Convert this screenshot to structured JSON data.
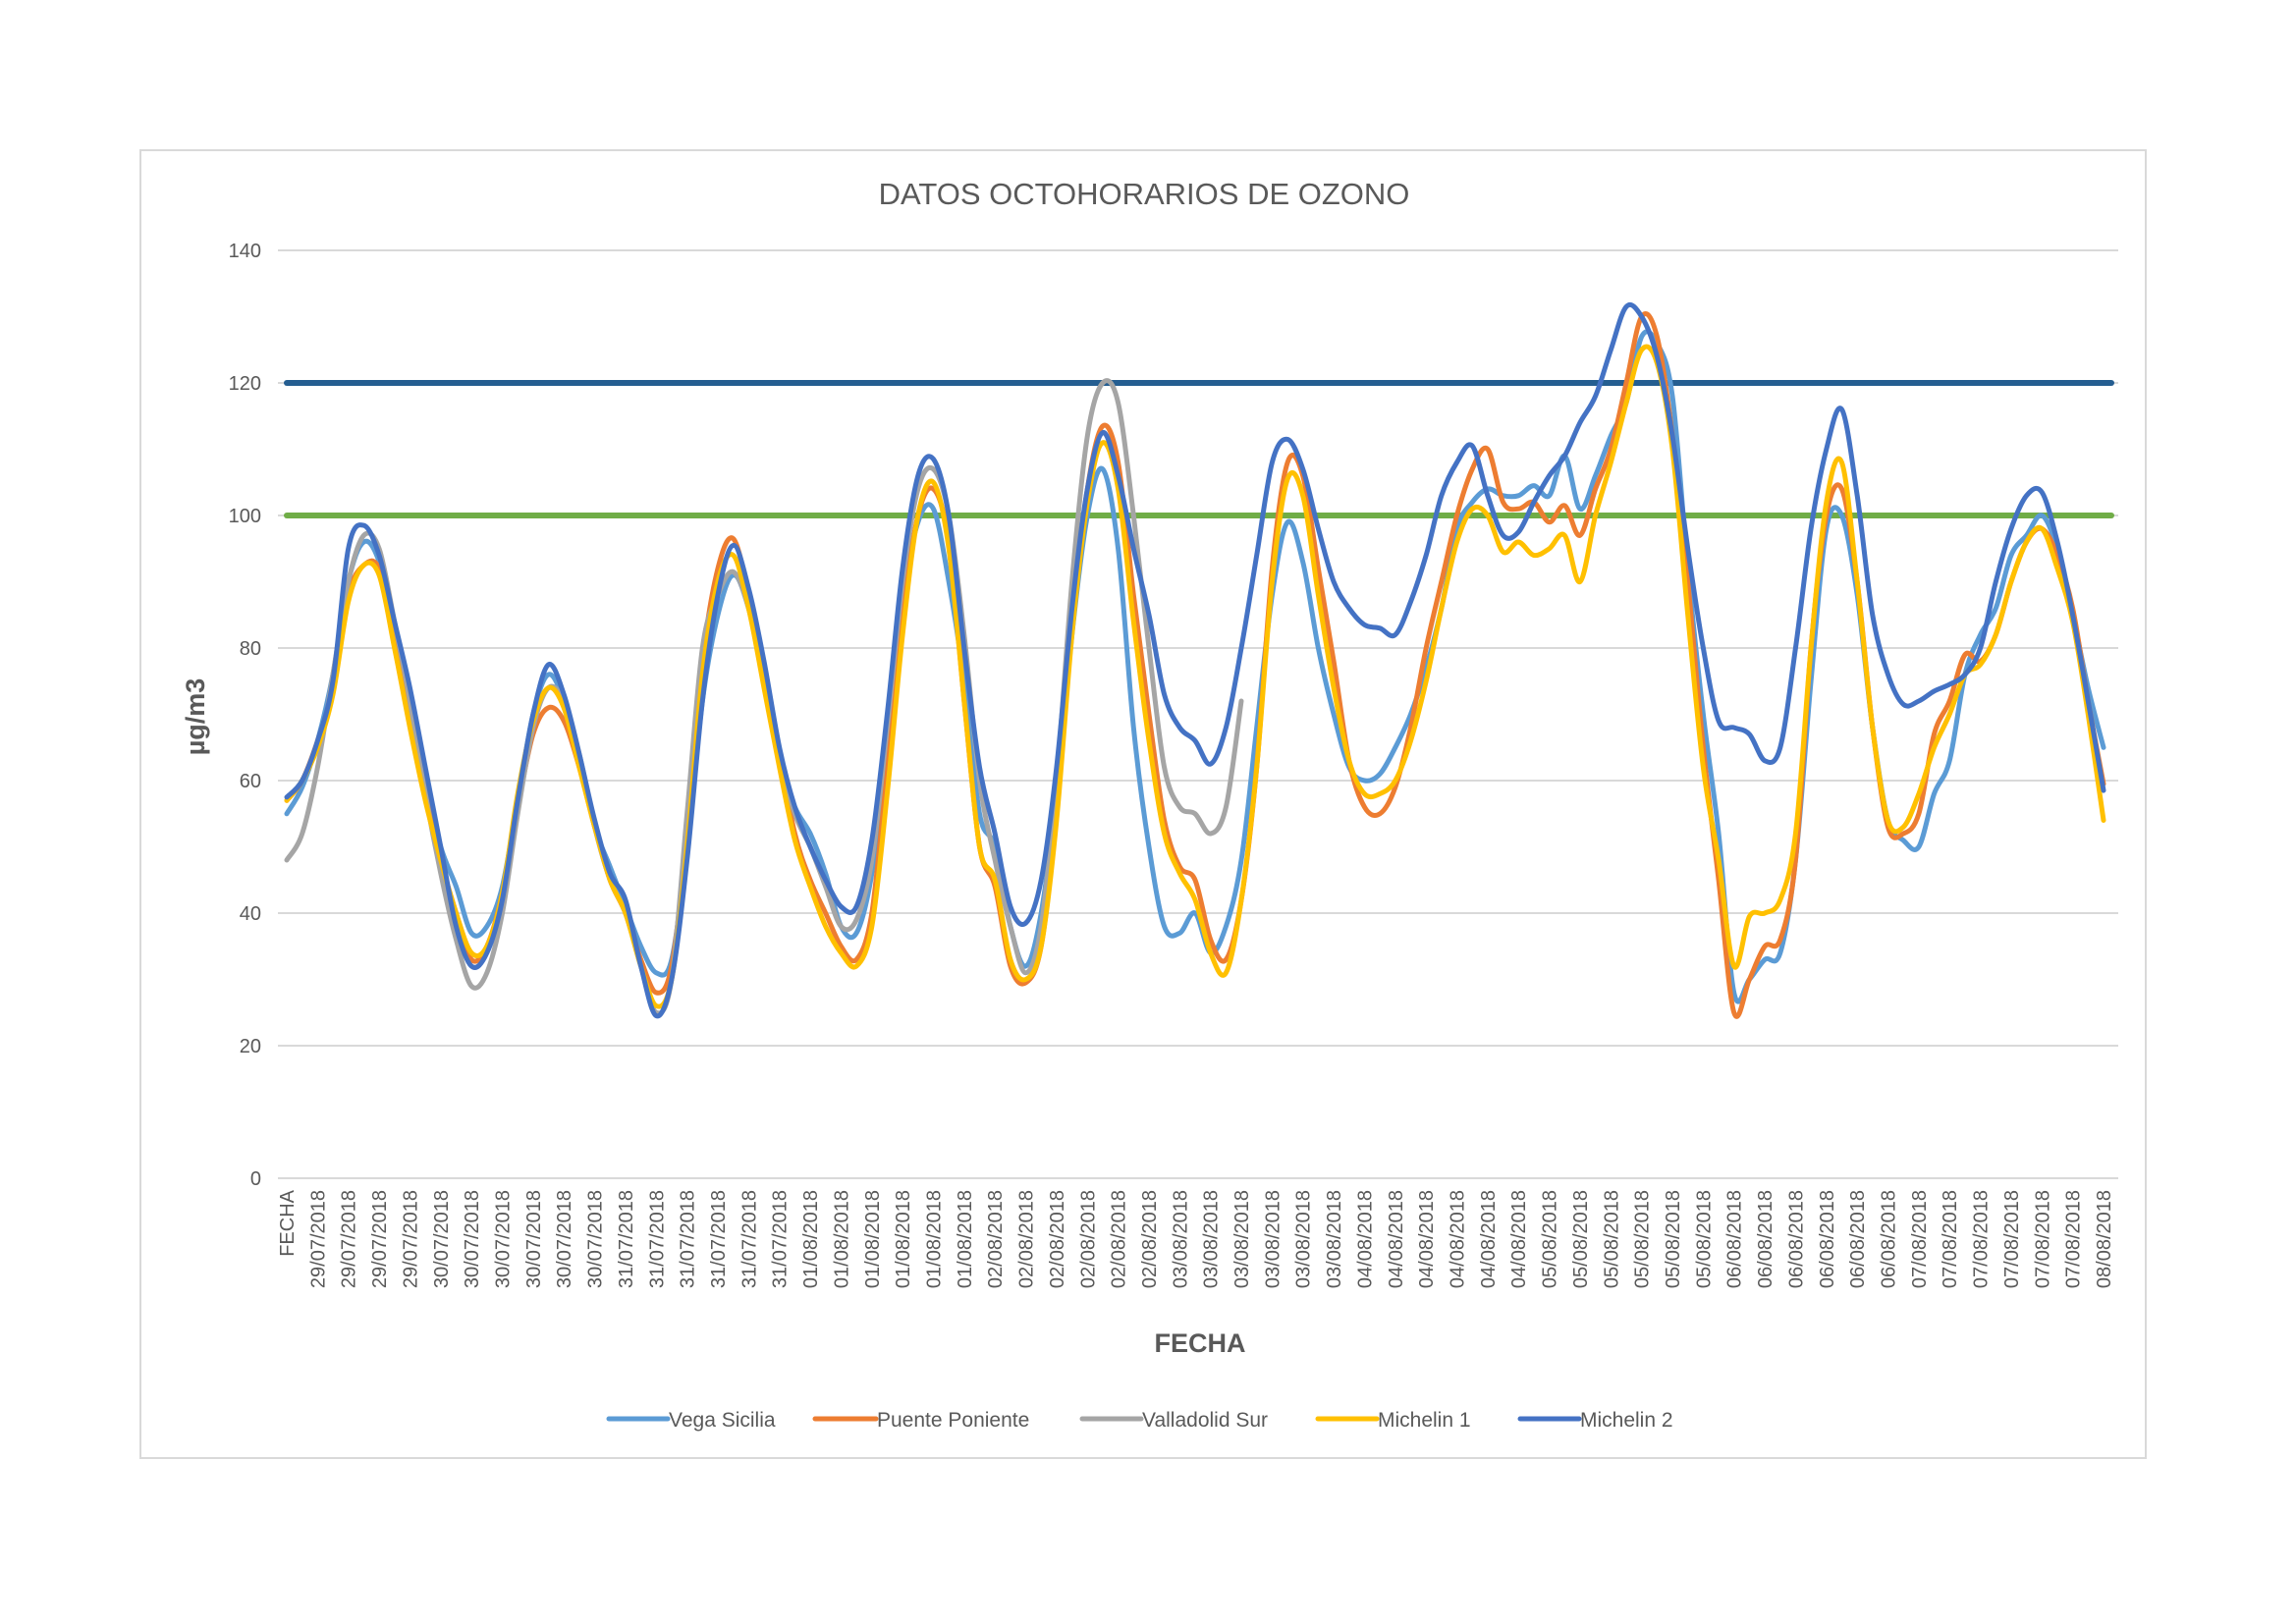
{
  "chart_data": {
    "type": "line",
    "title": "DATOS OCTOHORARIOS DE OZONO",
    "xlabel": "FECHA",
    "ylabel": "µg/m3",
    "ylim": [
      0,
      140
    ],
    "y_ticks": [
      0,
      20,
      40,
      60,
      80,
      100,
      120,
      140
    ],
    "grid": "horizontal",
    "smooth": true,
    "legend": "bottom",
    "tick_label_interval": 2,
    "categories": [
      "FECHA",
      "29/07/2018",
      "29/07/2018",
      "29/07/2018",
      "29/07/2018",
      "29/07/2018",
      "29/07/2018",
      "29/07/2018",
      "29/07/2018",
      "30/07/2018",
      "30/07/2018",
      "30/07/2018",
      "30/07/2018",
      "30/07/2018",
      "30/07/2018",
      "30/07/2018",
      "30/07/2018",
      "30/07/2018",
      "30/07/2018",
      "30/07/2018",
      "30/07/2018",
      "31/07/2018",
      "31/07/2018",
      "31/07/2018",
      "31/07/2018",
      "31/07/2018",
      "31/07/2018",
      "31/07/2018",
      "31/07/2018",
      "31/07/2018",
      "31/07/2018",
      "31/07/2018",
      "31/07/2018",
      "01/08/2018",
      "01/08/2018",
      "01/08/2018",
      "01/08/2018",
      "01/08/2018",
      "01/08/2018",
      "01/08/2018",
      "01/08/2018",
      "01/08/2018",
      "01/08/2018",
      "01/08/2018",
      "01/08/2018",
      "02/08/2018",
      "02/08/2018",
      "02/08/2018",
      "02/08/2018",
      "02/08/2018",
      "02/08/2018",
      "02/08/2018",
      "02/08/2018",
      "02/08/2018",
      "02/08/2018",
      "02/08/2018",
      "02/08/2018",
      "03/08/2018",
      "03/08/2018",
      "03/08/2018",
      "03/08/2018",
      "03/08/2018",
      "03/08/2018",
      "03/08/2018",
      "03/08/2018",
      "03/08/2018",
      "03/08/2018",
      "03/08/2018",
      "03/08/2018",
      "04/08/2018",
      "04/08/2018",
      "04/08/2018",
      "04/08/2018",
      "04/08/2018",
      "04/08/2018",
      "04/08/2018",
      "04/08/2018",
      "04/08/2018",
      "04/08/2018",
      "04/08/2018",
      "04/08/2018",
      "05/08/2018",
      "05/08/2018",
      "05/08/2018",
      "05/08/2018",
      "05/08/2018",
      "05/08/2018",
      "05/08/2018",
      "05/08/2018",
      "05/08/2018",
      "05/08/2018",
      "05/08/2018",
      "05/08/2018",
      "06/08/2018",
      "06/08/2018",
      "06/08/2018",
      "06/08/2018",
      "06/08/2018",
      "06/08/2018",
      "06/08/2018",
      "06/08/2018",
      "06/08/2018",
      "06/08/2018",
      "06/08/2018",
      "06/08/2018",
      "07/08/2018",
      "07/08/2018",
      "07/08/2018",
      "07/08/2018",
      "07/08/2018",
      "07/08/2018",
      "07/08/2018",
      "07/08/2018",
      "07/08/2018",
      "07/08/2018",
      "07/08/2018",
      "07/08/2018",
      "08/08/2018",
      "08/08/2018"
    ],
    "reference_lines": [
      {
        "value": 120,
        "color": "#255E91"
      },
      {
        "value": 100,
        "color": "#70AD47"
      }
    ],
    "series": [
      {
        "name": "Vega Sicilia",
        "color": "#5B9BD5",
        "values": [
          55,
          59,
          66,
          76,
          90,
          96,
          93,
          82,
          72,
          60,
          50,
          44,
          37,
          38,
          44,
          57,
          70,
          76,
          72,
          63,
          53,
          47,
          41,
          35,
          31,
          33,
          50,
          72,
          85,
          91,
          86,
          75,
          63,
          56,
          52,
          46,
          38,
          37,
          46,
          65,
          87,
          99,
          101,
          90,
          75,
          55,
          50,
          38,
          32,
          40,
          58,
          82,
          100,
          107,
          95,
          68,
          50,
          38,
          37,
          40,
          34,
          38,
          48,
          68,
          88,
          99,
          93,
          80,
          70,
          62,
          60,
          61,
          65,
          70,
          77,
          86,
          98,
          102,
          104,
          103,
          103,
          104.5,
          103,
          109,
          101,
          106,
          112,
          117,
          127,
          126,
          118,
          92,
          70,
          52,
          28,
          30,
          33,
          34,
          48,
          75,
          98,
          100,
          88,
          68,
          54,
          51,
          50,
          58,
          63,
          76,
          82,
          86,
          94,
          97,
          100,
          95,
          85,
          74,
          65
        ]
      },
      {
        "name": "Puente Poniente",
        "color": "#ED7D31",
        "values": [
          57,
          60,
          66,
          74,
          88,
          92.5,
          92,
          82,
          70,
          58,
          48,
          40,
          33,
          35,
          43,
          56,
          67,
          71,
          69,
          62,
          53,
          45,
          40,
          33,
          28,
          32,
          52,
          78,
          92,
          96.5,
          88,
          76,
          64,
          52,
          45,
          40,
          35,
          33,
          40,
          62,
          85,
          100,
          104,
          96,
          72,
          50,
          44,
          32,
          29.5,
          35,
          55,
          84,
          104,
          113.5,
          108,
          88,
          70,
          54,
          47,
          45,
          36,
          33,
          42,
          62,
          92,
          108,
          106,
          92,
          78,
          63,
          56,
          55,
          59,
          68,
          80,
          90,
          100,
          107,
          110,
          102,
          101,
          102,
          99,
          101.5,
          97,
          104,
          110,
          120,
          130,
          127,
          112,
          90,
          65,
          45,
          25,
          30,
          35,
          36,
          48,
          80,
          100,
          104,
          90,
          68,
          53,
          52,
          55,
          67,
          72,
          79,
          78,
          82,
          90,
          96,
          98,
          94,
          86,
          72,
          59.5
        ]
      },
      {
        "name": "Valladolid Sur",
        "color": "#A5A5A5",
        "values": [
          48,
          52,
          62,
          76,
          90,
          97,
          95,
          84,
          72,
          58,
          46,
          36,
          29,
          31,
          40,
          55,
          68,
          74,
          72,
          64,
          53,
          45,
          40,
          32,
          25,
          30,
          55,
          80,
          88,
          91.5,
          86,
          75,
          64,
          55,
          50,
          44,
          38,
          39,
          48,
          68,
          90,
          104,
          107,
          100,
          82,
          60,
          48,
          38,
          31,
          38,
          60,
          90,
          112,
          120,
          117,
          100,
          80,
          62,
          56,
          55,
          52,
          56,
          72,
          null,
          null,
          null,
          null,
          null,
          null,
          null,
          null,
          null,
          null,
          null,
          null,
          null,
          null,
          null,
          null,
          null,
          null,
          null,
          null,
          null,
          null,
          null,
          null,
          null,
          null,
          null,
          null,
          null,
          null,
          null,
          null,
          null,
          null,
          null,
          null,
          null,
          null,
          null,
          null,
          null,
          null,
          null,
          null,
          null,
          null,
          null,
          null,
          null,
          null,
          null,
          null,
          null,
          null,
          null,
          null
        ]
      },
      {
        "name": "Michelin 1",
        "color": "#FFC000",
        "values": [
          57,
          60,
          65,
          73,
          87,
          92.5,
          91,
          80,
          68,
          57,
          48,
          40,
          34,
          35,
          43,
          58,
          69,
          74,
          71,
          62,
          53,
          45,
          40,
          32,
          26,
          30,
          50,
          76,
          90,
          94,
          86,
          74,
          62,
          51,
          44,
          38,
          34,
          32,
          38,
          58,
          82,
          100,
          105,
          95,
          72,
          50,
          45,
          33,
          30,
          35,
          54,
          82,
          102,
          111,
          104,
          84,
          66,
          52,
          46,
          42,
          34,
          31,
          42,
          62,
          90,
          105.5,
          103,
          88,
          74,
          63,
          58,
          58,
          60,
          66,
          75,
          86,
          96,
          101,
          100,
          94.5,
          96,
          94,
          95,
          97,
          90,
          100,
          108,
          117,
          125,
          123,
          110,
          85,
          62,
          48,
          32,
          39.5,
          40,
          42,
          52,
          80,
          102,
          108,
          90,
          68,
          54,
          53,
          58,
          65,
          70,
          76,
          77.5,
          82,
          90,
          96,
          98,
          92,
          84,
          70,
          54
        ]
      },
      {
        "name": "Michelin 2",
        "color": "#4472C4",
        "values": [
          57.5,
          60,
          66,
          75,
          95,
          98.5,
          94,
          84,
          74,
          62,
          50,
          38,
          32,
          34,
          42,
          57,
          70,
          77.5,
          73,
          64,
          54,
          46,
          42,
          32,
          24.5,
          30,
          48,
          72,
          88,
          95.5,
          89,
          78,
          65,
          56,
          50,
          45,
          41,
          41,
          51,
          70,
          92,
          106,
          108.5,
          100,
          80,
          62,
          52,
          41,
          38.5,
          45,
          62,
          86,
          104,
          112.5,
          106,
          95,
          85,
          73,
          68,
          66,
          62.5,
          68,
          80,
          94,
          108,
          111.5,
          107,
          98,
          90,
          86,
          83.5,
          83,
          82,
          87,
          94,
          103,
          108,
          110.5,
          103,
          97,
          97.5,
          102,
          106,
          109,
          114,
          118,
          125,
          131.5,
          130,
          124,
          112,
          95,
          80,
          69,
          68,
          67,
          63,
          65,
          80,
          98,
          110,
          116,
          103,
          85,
          76,
          71.5,
          72,
          73.5,
          74.5,
          76,
          80,
          90,
          98,
          103,
          103.5,
          96,
          85,
          72,
          58.5
        ]
      }
    ]
  }
}
